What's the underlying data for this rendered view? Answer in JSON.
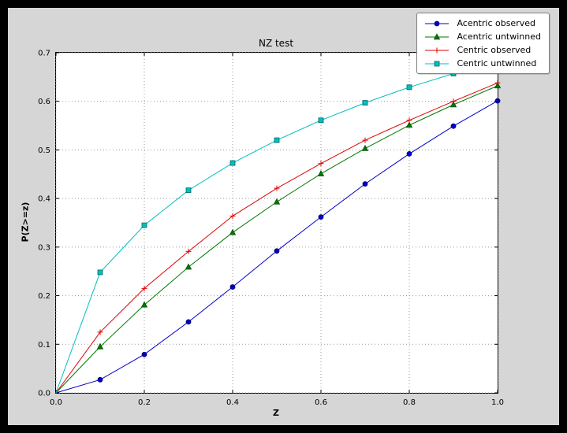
{
  "chart_data": {
    "type": "line",
    "title": "NZ test",
    "xlabel": "Z",
    "ylabel": "P(Z>=z)",
    "xlim": [
      0.0,
      1.0
    ],
    "ylim": [
      0.0,
      0.7
    ],
    "x_ticks": [
      "0.0",
      "0.2",
      "0.4",
      "0.6",
      "0.8",
      "1.0"
    ],
    "y_ticks": [
      "0.0",
      "0.1",
      "0.2",
      "0.3",
      "0.4",
      "0.5",
      "0.6",
      "0.7"
    ],
    "grid": true,
    "legend_position": "upper right",
    "x": [
      0.0,
      0.1,
      0.2,
      0.3,
      0.4,
      0.5,
      0.6,
      0.7,
      0.8,
      0.9,
      1.0
    ],
    "series": [
      {
        "name": "Acentric observed",
        "color": "#0000cc",
        "marker": "circle",
        "marker_edge": "#000066",
        "values": [
          0.0,
          0.027,
          0.079,
          0.146,
          0.218,
          0.292,
          0.362,
          0.43,
          0.492,
          0.549,
          0.601
        ]
      },
      {
        "name": "Acentric untwinned",
        "color": "#007a00",
        "marker": "triangle",
        "marker_edge": "#004d00",
        "values": [
          0.0,
          0.095,
          0.181,
          0.259,
          0.33,
          0.393,
          0.451,
          0.503,
          0.551,
          0.593,
          0.632
        ]
      },
      {
        "name": "Centric observed",
        "color": "#e00000",
        "marker": "plus",
        "marker_edge": "#e00000",
        "values": [
          0.0,
          0.125,
          0.215,
          0.291,
          0.364,
          0.421,
          0.472,
          0.52,
          0.561,
          0.6,
          0.638
        ]
      },
      {
        "name": "Centric untwinned",
        "color": "#00bfbf",
        "marker": "square",
        "marker_edge": "#006666",
        "values": [
          0.0,
          0.248,
          0.345,
          0.417,
          0.473,
          0.52,
          0.561,
          0.597,
          0.629,
          0.657,
          0.683
        ]
      }
    ],
    "colors": {
      "figure_bg": "#d6d6d6",
      "plot_bg": "#ffffff",
      "grid": "#9a9a9a",
      "frame": "#000000",
      "spine": "#000000"
    }
  }
}
